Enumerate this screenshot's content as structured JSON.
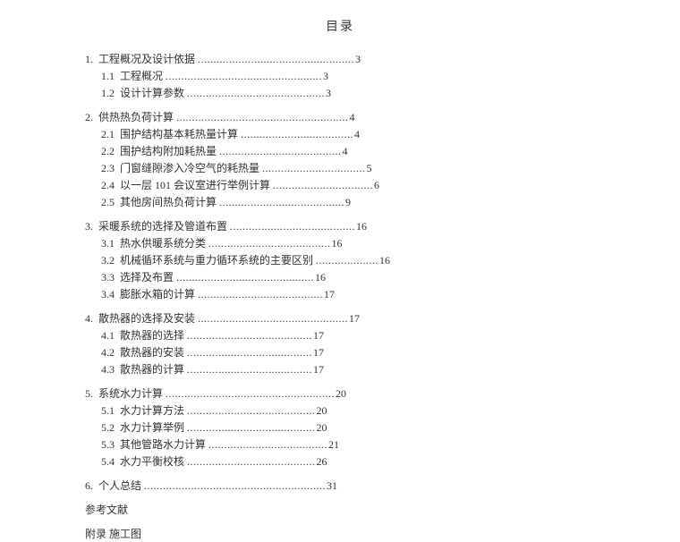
{
  "doc_title": "目录",
  "entries": [
    {
      "level": 1,
      "num": "1.",
      "title": "工程概况及设计依据",
      "dots": "..................................................",
      "page": "3"
    },
    {
      "level": 2,
      "num": "1.1",
      "title": "工程概况",
      "dots": "..................................................",
      "page": "3"
    },
    {
      "level": 2,
      "num": "1.2",
      "title": "设计计算参数",
      "dots": "............................................",
      "page": "3"
    },
    {
      "level": 1,
      "num": "2.",
      "title": "供热热负荷计算",
      "dots": ".......................................................",
      "page": "4"
    },
    {
      "level": 2,
      "num": "2.1",
      "title": "围护结构基本耗热量计算",
      "dots": "....................................",
      "page": "4"
    },
    {
      "level": 2,
      "num": "2.2",
      "title": "围护结构附加耗热量",
      "dots": ".......................................",
      "page": "4"
    },
    {
      "level": 2,
      "num": "2.3",
      "title": "门窗缝隙渗入冷空气的耗热量",
      "dots": ".................................",
      "page": "5"
    },
    {
      "level": 2,
      "num": "2.4",
      "title": "以一层 101 会议室进行举例计算",
      "dots": "................................",
      "page": "6"
    },
    {
      "level": 2,
      "num": "2.5",
      "title": "其他房间热负荷计算",
      "dots": "........................................",
      "page": "9"
    },
    {
      "level": 1,
      "num": "3.",
      "title": "采暖系统的选择及管道布置",
      "dots": "........................................",
      "page": "16"
    },
    {
      "level": 2,
      "num": "3.1",
      "title": "热水供暖系统分类",
      "dots": ".......................................",
      "page": "16"
    },
    {
      "level": 2,
      "num": "3.2",
      "title": "机械循环系统与重力循环系统的主要区别",
      "dots": "....................",
      "page": "16"
    },
    {
      "level": 2,
      "num": "3.3",
      "title": "选择及布置",
      "dots": "............................................",
      "page": "16"
    },
    {
      "level": 2,
      "num": "3.4",
      "title": "膨胀水箱的计算",
      "dots": "........................................",
      "page": "17"
    },
    {
      "level": 1,
      "num": "4.",
      "title": "散热器的选择及安装",
      "dots": "................................................",
      "page": "17"
    },
    {
      "level": 2,
      "num": "4.1",
      "title": "散热器的选择",
      "dots": "........................................",
      "page": "17"
    },
    {
      "level": 2,
      "num": "4.2",
      "title": "散热器的安装",
      "dots": "........................................",
      "page": "17"
    },
    {
      "level": 2,
      "num": "4.3",
      "title": "散热器的计算",
      "dots": "........................................",
      "page": "17"
    },
    {
      "level": 1,
      "num": "5.",
      "title": "系统水力计算",
      "dots": "......................................................",
      "page": "20"
    },
    {
      "level": 2,
      "num": "5.1",
      "title": "水力计算方法",
      "dots": ".........................................",
      "page": "20"
    },
    {
      "level": 2,
      "num": "5.2",
      "title": "水力计算举例",
      "dots": ".........................................",
      "page": "20"
    },
    {
      "level": 2,
      "num": "5.3",
      "title": "其他管路水力计算",
      "dots": "......................................",
      "page": "21"
    },
    {
      "level": 2,
      "num": "5.4",
      "title": "水力平衡校核",
      "dots": ".........................................",
      "page": "26"
    },
    {
      "level": 1,
      "num": "6.",
      "title": "个人总结",
      "dots": "..........................................................",
      "page": "31"
    }
  ],
  "tail_entries": [
    "参考文献",
    "附录  施工图"
  ]
}
